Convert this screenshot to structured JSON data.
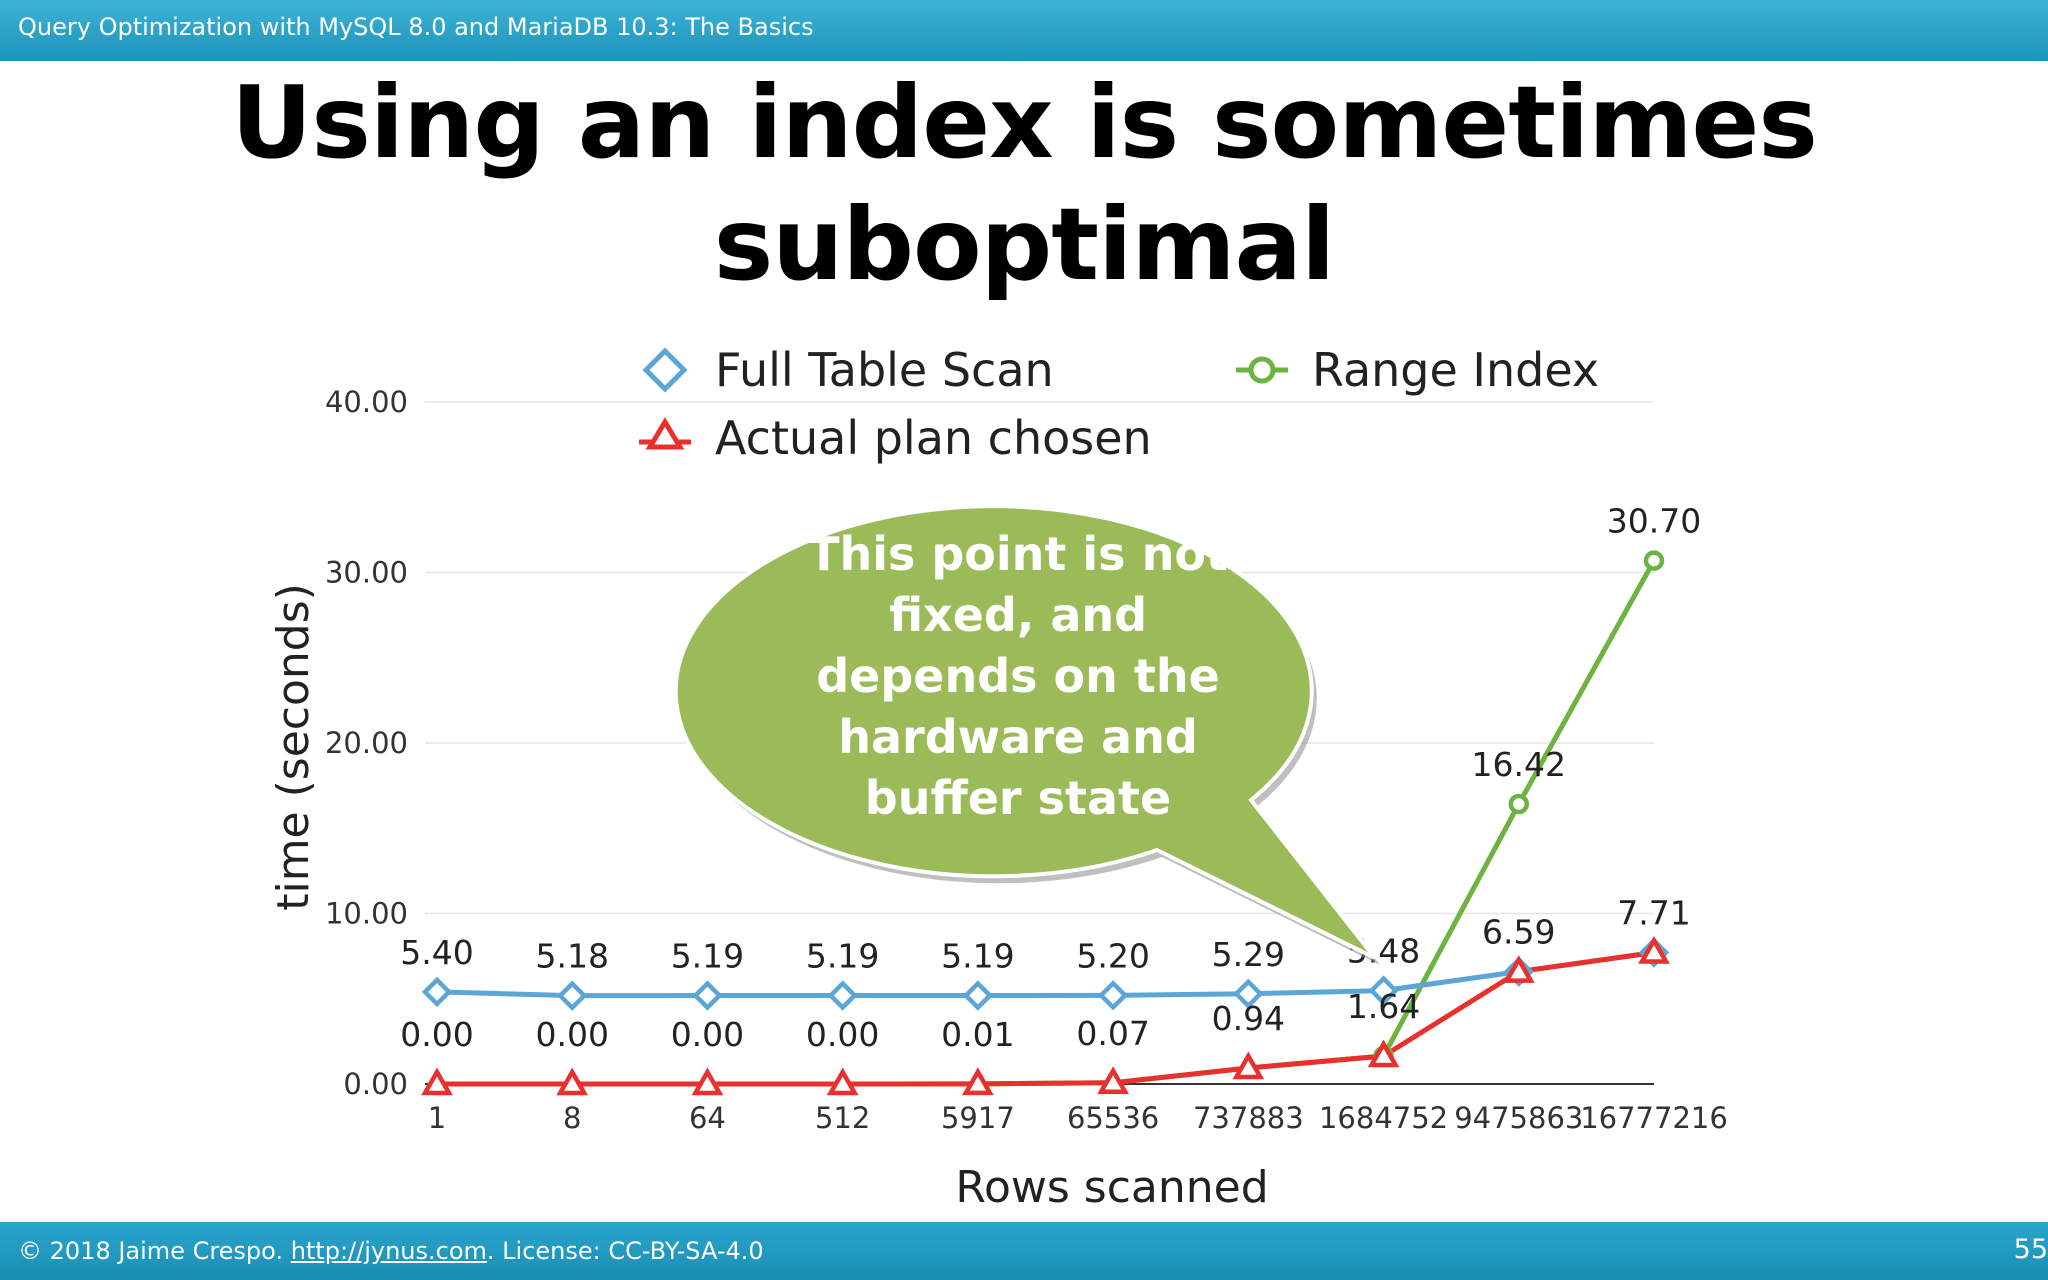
{
  "header": {
    "deck_title": "Query Optimization with MySQL 8.0 and MariaDB 10.3: The Basics"
  },
  "slide": {
    "title_line1": "Using an index is sometimes",
    "title_line2": "suboptimal",
    "callout": [
      "This point is not",
      "fixed, and",
      "depends on the",
      "hardware and",
      "buffer state"
    ]
  },
  "footer": {
    "copyright": "© 2018 Jaime Crespo. ",
    "link_text": "http://jynus.com",
    "license": ". License: CC-BY-SA-4.0",
    "page_number": "55"
  },
  "colors": {
    "full_table_scan": "#5ba6d6",
    "range_index": "#6cb33f",
    "actual_plan": "#e8312d",
    "callout": "#9bbb59"
  },
  "chart_data": {
    "type": "line",
    "xlabel": "Rows scanned",
    "ylabel": "time (seconds)",
    "ylim": [
      0,
      40
    ],
    "yticks": [
      "0.00",
      "10.00",
      "20.00",
      "30.00",
      "40.00"
    ],
    "categories": [
      "1",
      "8",
      "64",
      "512",
      "5917",
      "65536",
      "737883",
      "1684752",
      "9475863",
      "16777216"
    ],
    "legend_position": "top",
    "series": [
      {
        "name": "Full Table Scan",
        "marker": "diamond",
        "color": "#5ba6d6",
        "values": [
          5.4,
          5.18,
          5.19,
          5.19,
          5.19,
          5.2,
          5.29,
          5.48,
          6.59,
          7.71
        ],
        "labels": [
          "5.40",
          "5.18",
          "5.19",
          "5.19",
          "5.19",
          "5.20",
          "5.29",
          "5.48",
          "6.59",
          "7.71"
        ]
      },
      {
        "name": "Range Index",
        "marker": "circle",
        "color": "#6cb33f",
        "values": [
          0.0,
          0.0,
          0.0,
          0.0,
          0.01,
          0.07,
          0.94,
          1.64,
          16.42,
          30.7
        ],
        "labels": [
          "",
          "",
          "",
          "",
          "",
          "",
          "",
          "",
          "16.42",
          "30.70"
        ]
      },
      {
        "name": "Actual plan chosen",
        "marker": "triangle",
        "color": "#e8312d",
        "values": [
          0.0,
          0.0,
          0.0,
          0.0,
          0.01,
          0.07,
          0.94,
          1.64,
          6.59,
          7.71
        ],
        "labels": [
          "0.00",
          "0.00",
          "0.00",
          "0.00",
          "0.01",
          "0.07",
          "0.94",
          "1.64",
          "",
          ""
        ]
      }
    ]
  }
}
